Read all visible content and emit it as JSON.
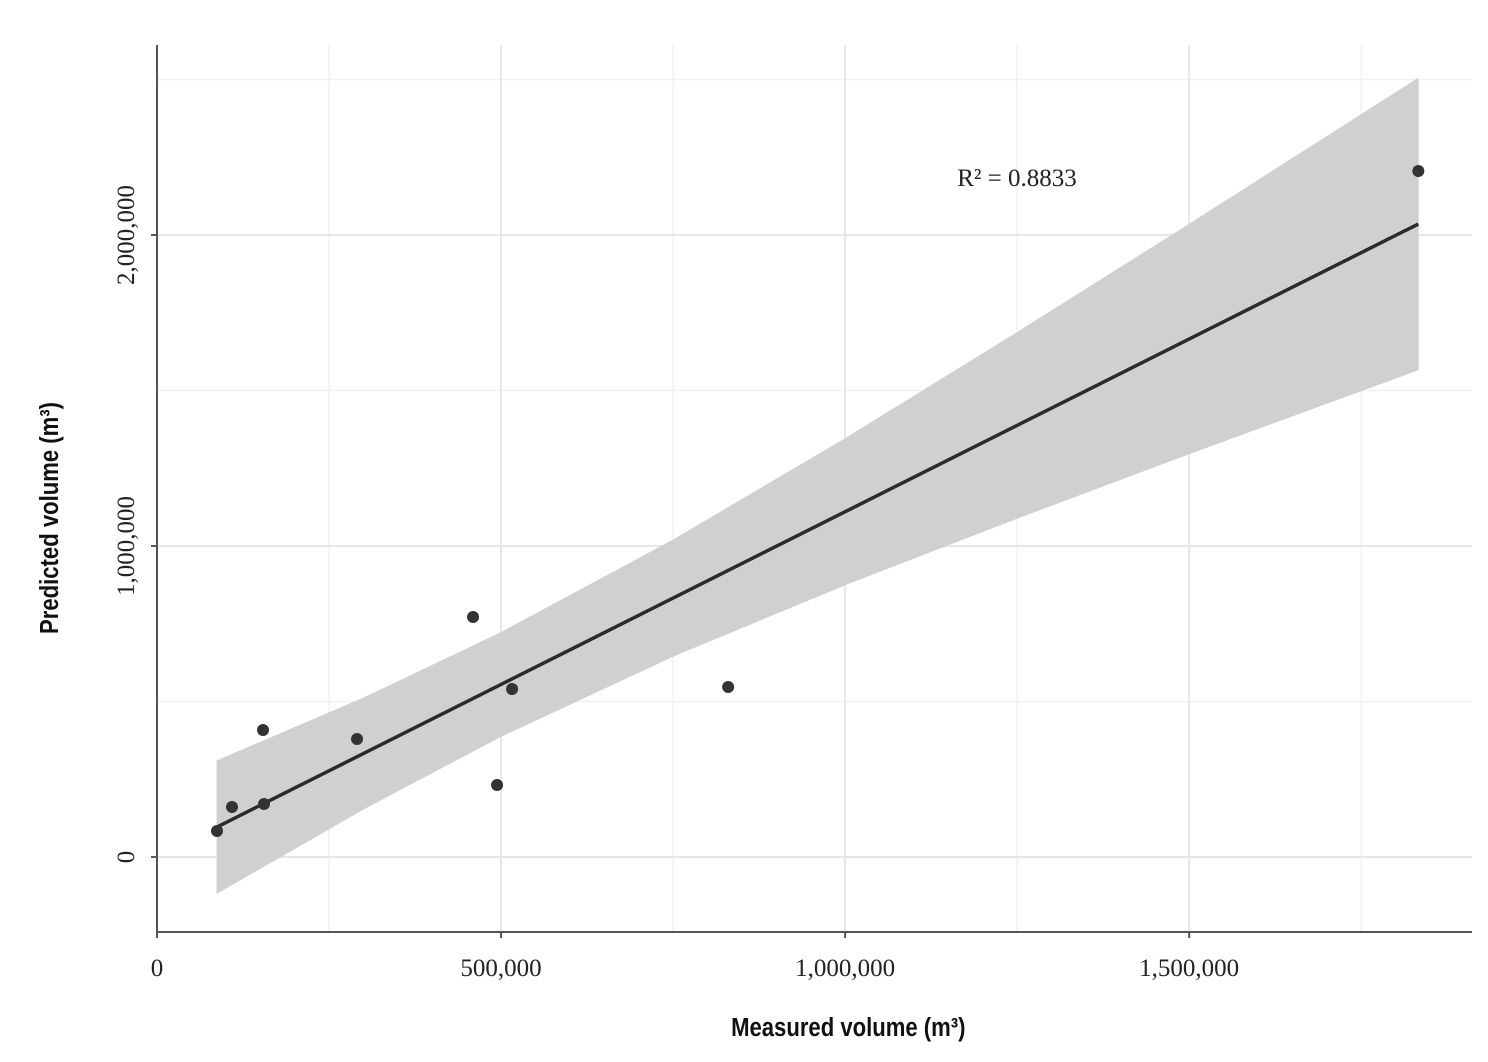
{
  "chart_data": {
    "type": "scatter",
    "x_label": "Measured volume (m³)",
    "y_label": "Predicted volume (m³)",
    "annotation": "R² = 0.8833",
    "xlim": [
      0,
      1911000
    ],
    "ylim": [
      -241000,
      2611000
    ],
    "xticks": [
      0,
      {
        "value": 500000,
        "label": "500,000"
      },
      {
        "value": 1000000,
        "label": "1,000,000"
      },
      {
        "value": 1500000,
        "label": "1,500,000"
      }
    ],
    "yticks": [
      0,
      {
        "value": 1000000,
        "label": "1,000,000"
      },
      {
        "value": 2000000,
        "label": "2,000,000"
      }
    ],
    "x_minor_grid": [
      250000,
      750000,
      1250000,
      1750000
    ],
    "y_minor_grid": [
      500000,
      1500000,
      2500000
    ],
    "grid": true,
    "points": {
      "color": "#333333",
      "x": [
        87200,
        109000,
        155500,
        154100,
        290700,
        459300,
        494200,
        516000,
        830000,
        1833000
      ],
      "y": [
        83600,
        160800,
        170400,
        408400,
        379400,
        771700,
        231500,
        540200,
        546600,
        2205800
      ]
    },
    "fit": {
      "color": "#2b2b2b",
      "x": [
        87200,
        1833000
      ],
      "y": [
        96500,
        2035400
      ]
    },
    "band": {
      "color": "#d0d0d0",
      "x": [
        87200,
        300000,
        500000,
        750000,
        1000000,
        1250000,
        1500000,
        1833000
      ],
      "lower": [
        -116500,
        154200,
        388000,
        645600,
        875300,
        1089200,
        1296600,
        1566400
      ],
      "upper": [
        309500,
        511400,
        722000,
        1019600,
        1345300,
        1686600,
        2034600,
        2504400
      ]
    }
  }
}
